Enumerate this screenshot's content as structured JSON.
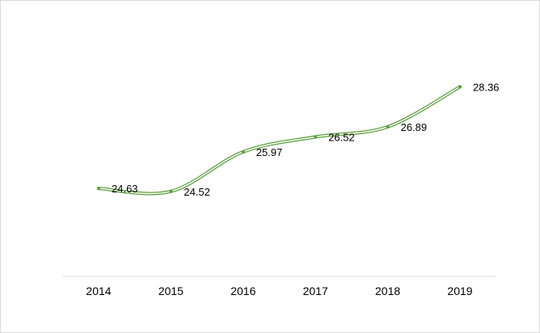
{
  "chart_data": {
    "type": "line",
    "title": "",
    "xlabel": "",
    "ylabel": "",
    "categories": [
      "2014",
      "2015",
      "2016",
      "2017",
      "2018",
      "2019"
    ],
    "series": [
      {
        "name": "Series1",
        "values": [
          24.63,
          24.52,
          25.97,
          26.52,
          26.89,
          28.36
        ],
        "labels": [
          "24.63",
          "24.52",
          "25.97",
          "26.52",
          "26.89",
          "28.36"
        ]
      }
    ],
    "ylim": [
      21.4,
      29.2
    ],
    "grid": false,
    "legend": "none",
    "smooth": true,
    "colors": {
      "line": "#5a9e3a",
      "inner": "#ffffff",
      "axis": "#d9d9d9",
      "text": "#000000"
    }
  }
}
